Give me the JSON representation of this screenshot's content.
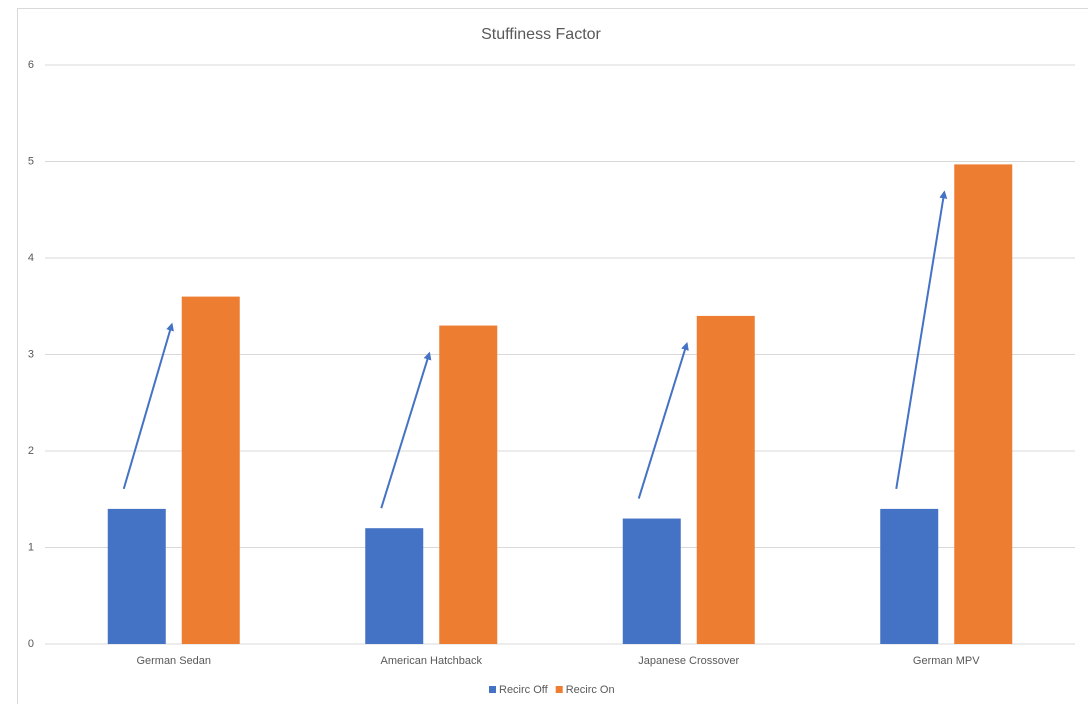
{
  "chart_data": {
    "type": "bar",
    "title": "Stuffiness Factor",
    "categories": [
      "German Sedan",
      "American Hatchback",
      "Japanese Crossover",
      "German MPV"
    ],
    "series": [
      {
        "name": "Recirc Off",
        "color": "#4472c4",
        "values": [
          1.4,
          1.2,
          1.3,
          1.4
        ]
      },
      {
        "name": "Recirc On",
        "color": "#ed7d31",
        "values": [
          3.6,
          3.3,
          3.4,
          4.97
        ]
      }
    ],
    "ylim": [
      0,
      6
    ],
    "yticks": [
      0,
      1,
      2,
      3,
      4,
      5,
      6
    ],
    "grid": true,
    "legend": "bottom"
  }
}
